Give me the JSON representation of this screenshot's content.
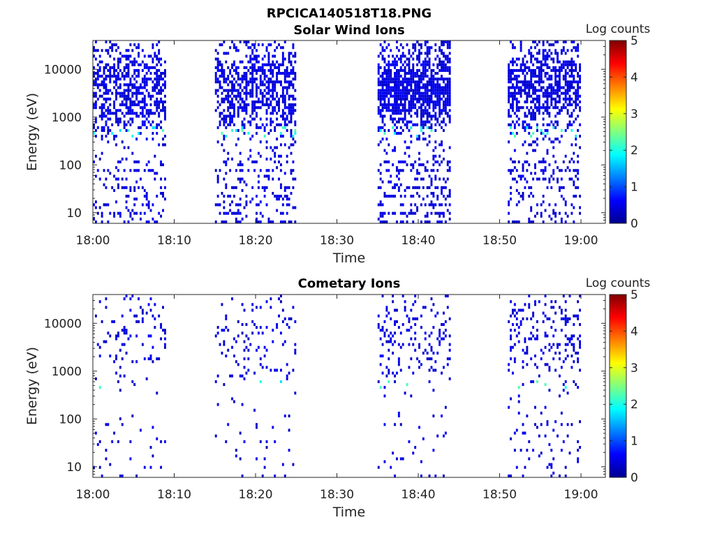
{
  "figure": {
    "filename": "RPCICA140518T18.PNG"
  },
  "chart_data": [
    {
      "type": "heatmap",
      "title": "Solar Wind Ions",
      "xlabel": "Time",
      "ylabel": "Energy (eV)",
      "x_ticks": [
        "18:00",
        "18:10",
        "18:20",
        "18:30",
        "18:40",
        "18:50",
        "19:00"
      ],
      "x_range_minutes": [
        0,
        63
      ],
      "y_scale": "log",
      "y_range": [
        6,
        40000
      ],
      "y_ticks": [
        10,
        100,
        1000,
        10000
      ],
      "y_tick_labels": [
        "10",
        "100",
        "1000",
        "10000"
      ],
      "colorbar": {
        "label": "Log counts",
        "range": [
          0,
          5
        ],
        "ticks": [
          "0",
          "1",
          "2",
          "3",
          "4",
          "5"
        ],
        "colormap": "jet"
      },
      "grid": false,
      "bursts": [
        {
          "start": "18:00",
          "end": "18:09",
          "density": 0.55
        },
        {
          "start": "18:15",
          "end": "18:25",
          "density": 0.6
        },
        {
          "start": "18:35",
          "end": "18:44",
          "density": 0.8
        },
        {
          "start": "18:51",
          "end": "19:00",
          "density": 0.65
        }
      ],
      "peak_energy_eV": 500,
      "seed": 11
    },
    {
      "type": "heatmap",
      "title": "Cometary Ions",
      "xlabel": "Time",
      "ylabel": "Energy (eV)",
      "x_ticks": [
        "18:00",
        "18:10",
        "18:20",
        "18:30",
        "18:40",
        "18:50",
        "19:00"
      ],
      "x_range_minutes": [
        0,
        63
      ],
      "y_scale": "log",
      "y_range": [
        6,
        40000
      ],
      "y_ticks": [
        10,
        100,
        1000,
        10000
      ],
      "y_tick_labels": [
        "10",
        "100",
        "1000",
        "10000"
      ],
      "colorbar": {
        "label": "Log counts",
        "range": [
          0,
          5
        ],
        "ticks": [
          "0",
          "1",
          "2",
          "3",
          "4",
          "5"
        ],
        "colormap": "jet"
      },
      "grid": false,
      "bursts": [
        {
          "start": "18:00",
          "end": "18:09",
          "density": 0.12
        },
        {
          "start": "18:15",
          "end": "18:25",
          "density": 0.13
        },
        {
          "start": "18:35",
          "end": "18:44",
          "density": 0.18
        },
        {
          "start": "18:51",
          "end": "19:00",
          "density": 0.2
        }
      ],
      "peak_energy_eV": 550,
      "seed": 37
    }
  ]
}
